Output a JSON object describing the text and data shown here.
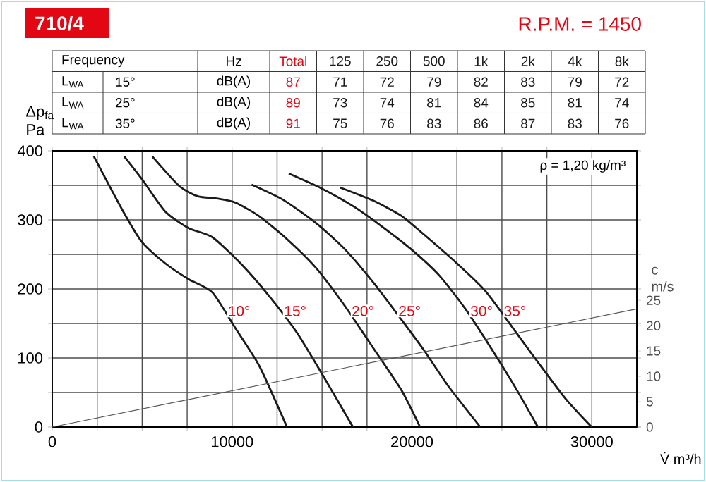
{
  "chart_data": [
    {
      "type": "other",
      "data_labels": true,
      "categories": [
        "Total",
        "125",
        "250",
        "500",
        "1k",
        "2k",
        "4k",
        "8k"
      ],
      "series": [
        {
          "name": "15°",
          "values": [
            87,
            71,
            72,
            79,
            82,
            83,
            79,
            72
          ]
        },
        {
          "name": "25°",
          "values": [
            89,
            73,
            74,
            81,
            84,
            85,
            81,
            74
          ]
        },
        {
          "name": "35°",
          "values": [
            91,
            75,
            76,
            83,
            86,
            87,
            83,
            76
          ]
        }
      ],
      "annotations": [
        "Frequency",
        "Hz",
        "L$_{WA}$",
        "L$_{WA}$",
        "L$_{WA}$",
        "dB(A)",
        "dB(A)",
        "dB(A)"
      ]
    },
    {
      "type": "line",
      "title": "710/4",
      "subtitle": "R.P.M. = 1450",
      "xlabel": "V̇ m³/h",
      "ylabel": "Δp$_{fa}$ Pa",
      "y2label": "c m/s",
      "xlim": [
        0,
        32500
      ],
      "ylim": [
        0,
        400
      ],
      "y2lim": [
        0,
        54.5
      ],
      "xticks": [
        0,
        {
          "value": 2500,
          "label": null
        },
        {
          "value": 5000,
          "label": null
        },
        {
          "value": 7500,
          "label": null
        },
        10000,
        {
          "value": 12500,
          "label": null
        },
        {
          "value": 15000,
          "label": null
        },
        {
          "value": 17500,
          "label": null
        },
        20000,
        {
          "value": 22500,
          "label": null
        },
        {
          "value": 25000,
          "label": null
        },
        {
          "value": 27500,
          "label": null
        },
        30000
      ],
      "yticks": [
        0,
        {
          "value": 50,
          "label": null
        },
        100,
        {
          "value": 150,
          "label": null
        },
        200,
        {
          "value": 250,
          "label": null
        },
        300,
        {
          "value": 350,
          "label": null
        },
        400
      ],
      "y2ticks": [
        0,
        5,
        10,
        15,
        20,
        25
      ],
      "grid": true,
      "annotations": [
        "ρ = 1,20 kg/m³"
      ],
      "series": [
        {
          "name": "10°",
          "color": "#1a1a1a",
          "x": [
            2312,
            3948,
            4987,
            6286,
            7584,
            8900,
            10210,
            11520,
            13050
          ],
          "values": [
            392,
            312,
            268,
            237,
            214,
            195,
            142,
            88,
            0
          ]
        },
        {
          "name": "15°",
          "color": "#1a1a1a",
          "x": [
            4000,
            4987,
            6286,
            7584,
            8897,
            10470,
            12050,
            13620,
            15200,
            16720
          ],
          "values": [
            392,
            359,
            312,
            288,
            275,
            237,
            190,
            136,
            68,
            0
          ]
        },
        {
          "name": "20°",
          "color": "#1a1a1a",
          "x": [
            5560,
            7065,
            8104,
            9143,
            10182,
            11520,
            13100,
            14680,
            16250,
            17830,
            19400,
            20450
          ],
          "values": [
            392,
            349,
            334,
            331,
            325,
            305,
            271,
            230,
            176,
            115,
            54,
            0
          ]
        },
        {
          "name": "25°",
          "color": "#1a1a1a",
          "x": [
            11080,
            12840,
            14680,
            16250,
            17830,
            19400,
            20700,
            22000,
            23800
          ],
          "values": [
            351,
            329,
            295,
            258,
            210,
            156,
            110,
            60,
            0
          ]
        },
        {
          "name": "30°",
          "color": "#1a1a1a",
          "x": [
            13150,
            14940,
            16780,
            18350,
            19930,
            21500,
            23000,
            24500,
            25800,
            27000
          ],
          "values": [
            367,
            346,
            319,
            290,
            258,
            220,
            170,
            110,
            55,
            0
          ]
        },
        {
          "name": "35°",
          "color": "#1a1a1a",
          "x": [
            15990,
            17830,
            19400,
            20700,
            22500,
            24080,
            25650,
            26970,
            28540,
            29990
          ],
          "values": [
            347,
            328,
            306,
            278,
            237,
            197,
            142,
            95,
            41,
            0
          ]
        },
        {
          "color": "#555555",
          "axis": "y2",
          "x": [
            0,
            32500
          ],
          "values": [
            0,
            23.3
          ]
        }
      ]
    }
  ]
}
